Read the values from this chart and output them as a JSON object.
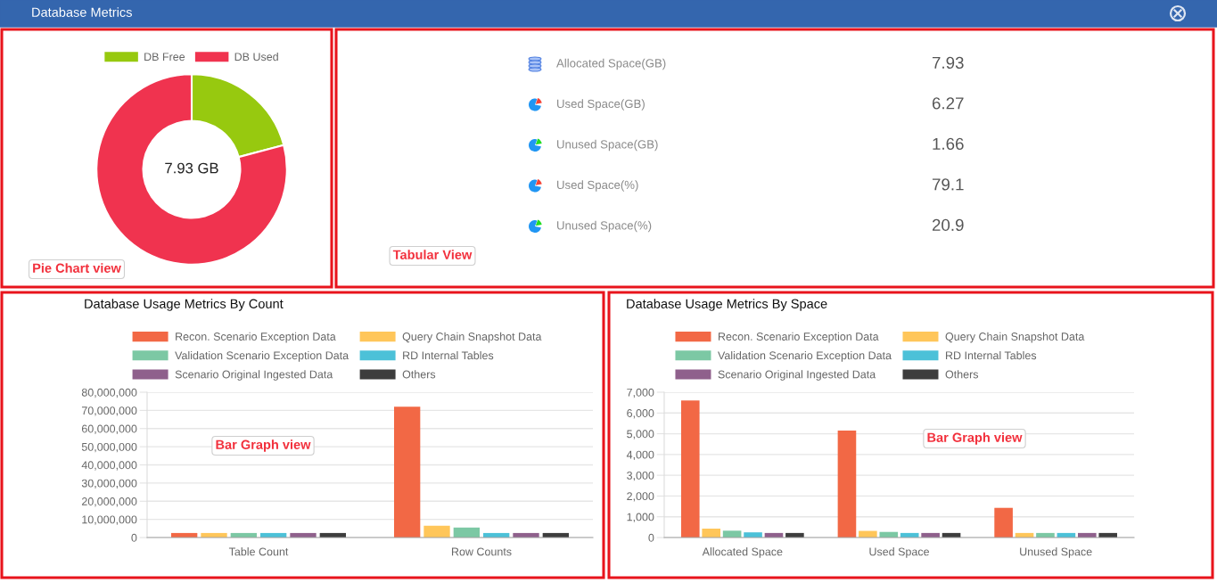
{
  "chart_data": [
    {
      "type": "donut",
      "title": "Database Metrics",
      "categories": [
        "DB Free",
        "DB Used"
      ],
      "values": [
        20.9,
        79.1
      ],
      "colors": [
        "#97c90f",
        "#f0334f"
      ],
      "legend": "top",
      "annotations": [
        "7.93 GB",
        "Pie Chart view"
      ]
    },
    {
      "type": "other",
      "categories": [
        "Allocated Space(GB)",
        "Used Space(GB)",
        "Unused Space(GB)",
        "Used Space(%)",
        "Unused Space(%)"
      ],
      "values": [
        7.93,
        6.27,
        1.66,
        79.1,
        20.9
      ],
      "data_labels": true,
      "annotations": [
        "Tabular View"
      ]
    },
    {
      "type": "bar",
      "title": "Database Usage Metrics By Count",
      "categories": [
        "Table Count",
        "Row Counts"
      ],
      "series": [
        {
          "name": "Recon. Scenario Exception Data",
          "color": "#f26845",
          "values": [
            2500000,
            72000000
          ]
        },
        {
          "name": "Query Chain Snapshot Data",
          "color": "#ffc65a",
          "values": [
            2500000,
            6500000
          ]
        },
        {
          "name": "Validation Scenario Exception Data",
          "color": "#7cc8a4",
          "values": [
            2500000,
            5500000
          ]
        },
        {
          "name": "RD Internal Tables",
          "color": "#4cc1d8",
          "values": [
            2500000,
            2500000
          ]
        },
        {
          "name": "Scenario Original Ingested Data",
          "color": "#8f608c",
          "values": [
            2500000,
            2500000
          ]
        },
        {
          "name": "Others",
          "color": "#3d3d3d",
          "values": [
            2500000,
            2500000
          ]
        }
      ],
      "ylim": [
        0,
        80000000
      ],
      "yticks": [
        0,
        {
          "value": 10000000,
          "label": "10,000,000"
        },
        {
          "value": 20000000,
          "label": "20,000,000"
        },
        {
          "value": 30000000,
          "label": "30,000,000"
        },
        {
          "value": 40000000,
          "label": "40,000,000"
        },
        {
          "value": 50000000,
          "label": "50,000,000"
        },
        {
          "value": 60000000,
          "label": "60,000,000"
        },
        {
          "value": 70000000,
          "label": "70,000,000"
        },
        {
          "value": 80000000,
          "label": "80,000,000"
        }
      ],
      "grid": "y",
      "legend": "top",
      "annotations": [
        "Bar Graph view"
      ]
    },
    {
      "type": "bar",
      "title": "Database Usage Metrics By Space",
      "categories": [
        "Allocated Space",
        "Used Space",
        "Unused Space"
      ],
      "series": [
        {
          "name": "Recon. Scenario Exception Data",
          "color": "#f26845",
          "values": [
            6600,
            5150,
            1430
          ]
        },
        {
          "name": "Query Chain Snapshot Data",
          "color": "#ffc65a",
          "values": [
            430,
            320,
            220
          ]
        },
        {
          "name": "Validation Scenario Exception Data",
          "color": "#7cc8a4",
          "values": [
            330,
            270,
            220
          ]
        },
        {
          "name": "RD Internal Tables",
          "color": "#4cc1d8",
          "values": [
            250,
            220,
            220
          ]
        },
        {
          "name": "Scenario Original Ingested Data",
          "color": "#8f608c",
          "values": [
            220,
            220,
            220
          ]
        },
        {
          "name": "Others",
          "color": "#3d3d3d",
          "values": [
            220,
            220,
            220
          ]
        }
      ],
      "ylim": [
        0,
        7000
      ],
      "yticks": [
        0,
        {
          "value": 1000,
          "label": "1,000"
        },
        {
          "value": 2000,
          "label": "2,000"
        },
        {
          "value": 3000,
          "label": "3,000"
        },
        {
          "value": 4000,
          "label": "4,000"
        },
        {
          "value": 5000,
          "label": "5,000"
        },
        {
          "value": 6000,
          "label": "6,000"
        },
        {
          "value": 7000,
          "label": "7,000"
        }
      ],
      "grid": "y",
      "legend": "top",
      "annotations": [
        "Bar Graph view"
      ]
    }
  ]
}
